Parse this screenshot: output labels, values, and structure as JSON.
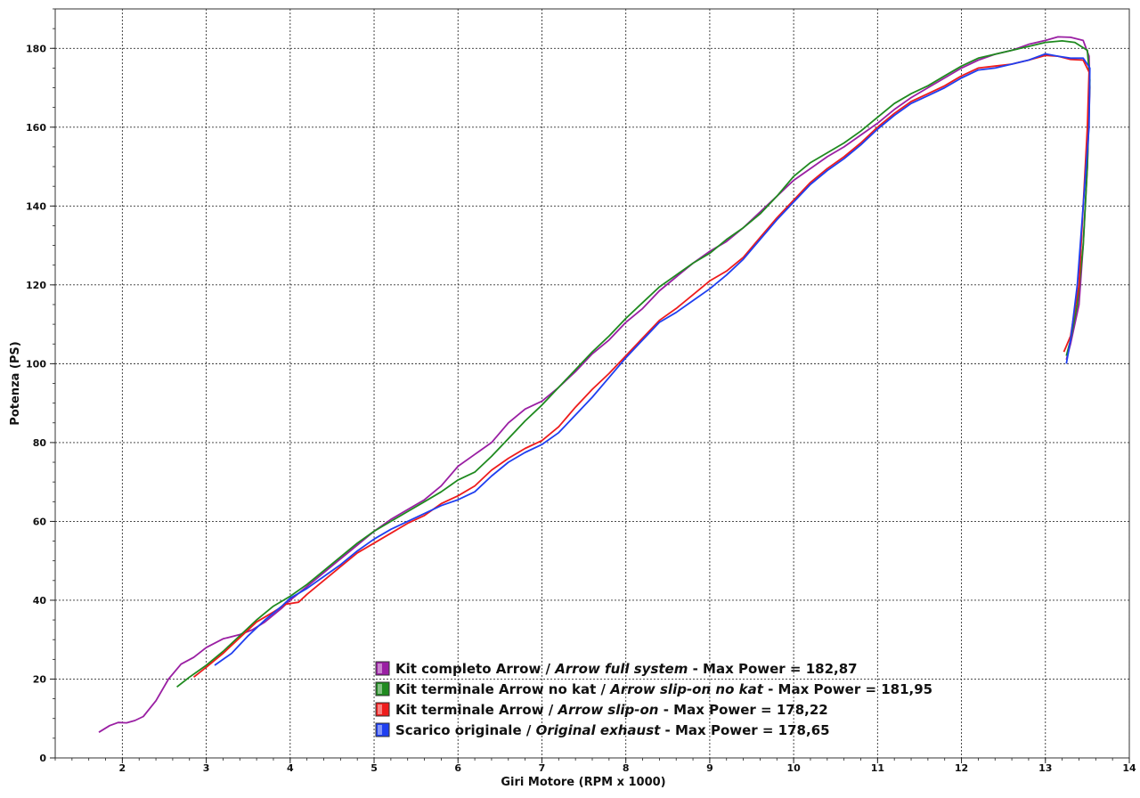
{
  "chart_data": {
    "type": "line",
    "xlabel": "Giri Motore (RPM x 1000)",
    "ylabel": "Potenza (PS)",
    "xlim": [
      1.2,
      14.0
    ],
    "ylim": [
      0,
      190
    ],
    "xticks": [
      2,
      3,
      4,
      5,
      6,
      7,
      8,
      9,
      10,
      11,
      12,
      13,
      14
    ],
    "yticks": [
      0,
      20,
      40,
      60,
      80,
      100,
      120,
      140,
      160,
      180
    ],
    "grid": true,
    "legend_position": "bottom-center",
    "series": [
      {
        "name_a": "Kit completo Arrow",
        "name_b": "Arrow full system",
        "suffix": "Max Power = 182,87",
        "color": "#9a1fa3",
        "points": [
          [
            1.72,
            6.5
          ],
          [
            1.85,
            8.2
          ],
          [
            1.95,
            9.0
          ],
          [
            2.05,
            8.9
          ],
          [
            2.15,
            9.5
          ],
          [
            2.25,
            10.5
          ],
          [
            2.4,
            14.5
          ],
          [
            2.55,
            20.0
          ],
          [
            2.7,
            23.8
          ],
          [
            2.85,
            25.5
          ],
          [
            3.0,
            28.0
          ],
          [
            3.2,
            30.2
          ],
          [
            3.4,
            31.3
          ],
          [
            3.55,
            32.5
          ],
          [
            3.7,
            34.5
          ],
          [
            3.9,
            38.0
          ],
          [
            4.0,
            40.0
          ],
          [
            4.2,
            43.5
          ],
          [
            4.4,
            47.0
          ],
          [
            4.6,
            50.5
          ],
          [
            4.8,
            54.0
          ],
          [
            5.0,
            57.5
          ],
          [
            5.2,
            60.5
          ],
          [
            5.4,
            63.0
          ],
          [
            5.6,
            65.5
          ],
          [
            5.8,
            69.0
          ],
          [
            6.0,
            74.0
          ],
          [
            6.2,
            77.0
          ],
          [
            6.4,
            80.0
          ],
          [
            6.6,
            85.0
          ],
          [
            6.8,
            88.5
          ],
          [
            7.0,
            90.5
          ],
          [
            7.2,
            94.0
          ],
          [
            7.4,
            98.0
          ],
          [
            7.6,
            102.5
          ],
          [
            7.8,
            106.0
          ],
          [
            8.0,
            110.5
          ],
          [
            8.2,
            114.0
          ],
          [
            8.4,
            118.5
          ],
          [
            8.6,
            122.0
          ],
          [
            8.8,
            125.5
          ],
          [
            9.0,
            128.5
          ],
          [
            9.2,
            131.0
          ],
          [
            9.4,
            134.5
          ],
          [
            9.6,
            138.5
          ],
          [
            9.8,
            142.5
          ],
          [
            10.0,
            146.5
          ],
          [
            10.2,
            149.5
          ],
          [
            10.4,
            152.5
          ],
          [
            10.6,
            155.0
          ],
          [
            10.8,
            158.0
          ],
          [
            11.0,
            161.0
          ],
          [
            11.2,
            164.5
          ],
          [
            11.4,
            167.5
          ],
          [
            11.6,
            170.0
          ],
          [
            11.8,
            172.5
          ],
          [
            12.0,
            175.0
          ],
          [
            12.2,
            177.0
          ],
          [
            12.4,
            178.5
          ],
          [
            12.6,
            179.5
          ],
          [
            12.8,
            181.0
          ],
          [
            13.0,
            182.0
          ],
          [
            13.15,
            182.9
          ],
          [
            13.3,
            182.8
          ],
          [
            13.45,
            182.0
          ],
          [
            13.52,
            178.0
          ],
          [
            13.53,
            170.0
          ],
          [
            13.5,
            150.0
          ],
          [
            13.45,
            130.0
          ],
          [
            13.4,
            115.0
          ],
          [
            13.3,
            105.0
          ],
          [
            13.25,
            101.0
          ]
        ]
      },
      {
        "name_a": "Kit terminale Arrow no kat",
        "name_b": "Arrow slip-on no kat",
        "suffix": "Max Power = 181,95",
        "color": "#1f8a1f",
        "points": [
          [
            2.65,
            18.0
          ],
          [
            2.8,
            20.5
          ],
          [
            3.0,
            23.5
          ],
          [
            3.2,
            27.0
          ],
          [
            3.4,
            31.0
          ],
          [
            3.6,
            35.0
          ],
          [
            3.8,
            38.5
          ],
          [
            4.0,
            41.0
          ],
          [
            4.2,
            44.0
          ],
          [
            4.4,
            47.5
          ],
          [
            4.6,
            51.0
          ],
          [
            4.8,
            54.5
          ],
          [
            5.0,
            57.5
          ],
          [
            5.2,
            60.0
          ],
          [
            5.4,
            62.5
          ],
          [
            5.6,
            65.0
          ],
          [
            5.8,
            67.5
          ],
          [
            6.0,
            70.5
          ],
          [
            6.2,
            72.5
          ],
          [
            6.4,
            76.5
          ],
          [
            6.6,
            81.0
          ],
          [
            6.8,
            85.5
          ],
          [
            7.0,
            89.5
          ],
          [
            7.2,
            94.0
          ],
          [
            7.4,
            98.5
          ],
          [
            7.6,
            103.0
          ],
          [
            7.8,
            107.0
          ],
          [
            8.0,
            111.5
          ],
          [
            8.2,
            115.5
          ],
          [
            8.4,
            119.5
          ],
          [
            8.6,
            122.5
          ],
          [
            8.8,
            125.5
          ],
          [
            9.0,
            128.0
          ],
          [
            9.2,
            131.5
          ],
          [
            9.4,
            134.5
          ],
          [
            9.6,
            138.0
          ],
          [
            9.8,
            142.5
          ],
          [
            10.0,
            147.5
          ],
          [
            10.2,
            151.0
          ],
          [
            10.4,
            153.5
          ],
          [
            10.6,
            156.0
          ],
          [
            10.8,
            159.0
          ],
          [
            11.0,
            162.5
          ],
          [
            11.2,
            166.0
          ],
          [
            11.4,
            168.5
          ],
          [
            11.6,
            170.5
          ],
          [
            11.8,
            173.0
          ],
          [
            12.0,
            175.5
          ],
          [
            12.2,
            177.5
          ],
          [
            12.4,
            178.5
          ],
          [
            12.6,
            179.5
          ],
          [
            12.8,
            180.5
          ],
          [
            13.0,
            181.5
          ],
          [
            13.2,
            181.9
          ],
          [
            13.35,
            181.5
          ],
          [
            13.5,
            179.5
          ],
          [
            13.53,
            172.0
          ],
          [
            13.5,
            150.0
          ],
          [
            13.45,
            130.0
          ],
          [
            13.38,
            115.0
          ],
          [
            13.3,
            106.0
          ],
          [
            13.25,
            102.0
          ]
        ]
      },
      {
        "name_a": "Kit terminale Arrow",
        "name_b": "Arrow slip-on",
        "suffix": "Max Power = 178,22",
        "color": "#ee1c1c",
        "points": [
          [
            2.85,
            20.5
          ],
          [
            3.0,
            23.0
          ],
          [
            3.2,
            26.5
          ],
          [
            3.4,
            30.5
          ],
          [
            3.6,
            34.5
          ],
          [
            3.8,
            37.0
          ],
          [
            3.95,
            39.0
          ],
          [
            4.1,
            39.5
          ],
          [
            4.2,
            41.5
          ],
          [
            4.4,
            45.0
          ],
          [
            4.6,
            48.5
          ],
          [
            4.8,
            52.0
          ],
          [
            5.0,
            54.5
          ],
          [
            5.2,
            57.0
          ],
          [
            5.4,
            59.5
          ],
          [
            5.6,
            61.5
          ],
          [
            5.8,
            64.5
          ],
          [
            6.0,
            66.5
          ],
          [
            6.2,
            69.0
          ],
          [
            6.4,
            73.0
          ],
          [
            6.6,
            76.0
          ],
          [
            6.8,
            78.5
          ],
          [
            7.0,
            80.5
          ],
          [
            7.2,
            84.0
          ],
          [
            7.4,
            89.0
          ],
          [
            7.6,
            93.5
          ],
          [
            7.8,
            97.5
          ],
          [
            8.0,
            102.0
          ],
          [
            8.2,
            106.5
          ],
          [
            8.4,
            111.0
          ],
          [
            8.6,
            114.0
          ],
          [
            8.8,
            117.5
          ],
          [
            9.0,
            121.0
          ],
          [
            9.2,
            123.5
          ],
          [
            9.4,
            127.0
          ],
          [
            9.6,
            132.0
          ],
          [
            9.8,
            137.0
          ],
          [
            10.0,
            141.5
          ],
          [
            10.2,
            146.0
          ],
          [
            10.4,
            149.5
          ],
          [
            10.6,
            152.5
          ],
          [
            10.8,
            156.0
          ],
          [
            11.0,
            160.0
          ],
          [
            11.2,
            163.5
          ],
          [
            11.4,
            166.5
          ],
          [
            11.6,
            168.5
          ],
          [
            11.8,
            170.5
          ],
          [
            12.0,
            173.0
          ],
          [
            12.2,
            175.0
          ],
          [
            12.4,
            175.5
          ],
          [
            12.6,
            176.0
          ],
          [
            12.8,
            177.0
          ],
          [
            13.0,
            178.2
          ],
          [
            13.15,
            178.0
          ],
          [
            13.3,
            177.2
          ],
          [
            13.45,
            177.0
          ],
          [
            13.52,
            174.0
          ],
          [
            13.5,
            160.0
          ],
          [
            13.45,
            140.0
          ],
          [
            13.4,
            120.0
          ],
          [
            13.3,
            107.0
          ],
          [
            13.22,
            103.0
          ]
        ]
      },
      {
        "name_a": "Scarico originale",
        "name_b": "Original exhaust",
        "suffix": "Max Power = 178,65",
        "color": "#1f3ff0",
        "points": [
          [
            3.1,
            23.5
          ],
          [
            3.3,
            26.5
          ],
          [
            3.5,
            31.0
          ],
          [
            3.7,
            35.0
          ],
          [
            3.9,
            38.5
          ],
          [
            4.0,
            40.5
          ],
          [
            4.2,
            43.0
          ],
          [
            4.4,
            46.0
          ],
          [
            4.6,
            49.0
          ],
          [
            4.8,
            52.5
          ],
          [
            5.0,
            55.5
          ],
          [
            5.2,
            58.0
          ],
          [
            5.4,
            60.0
          ],
          [
            5.6,
            62.0
          ],
          [
            5.8,
            64.0
          ],
          [
            6.0,
            65.5
          ],
          [
            6.2,
            67.5
          ],
          [
            6.4,
            71.5
          ],
          [
            6.6,
            75.0
          ],
          [
            6.8,
            77.5
          ],
          [
            7.0,
            79.5
          ],
          [
            7.2,
            82.5
          ],
          [
            7.4,
            87.0
          ],
          [
            7.6,
            91.5
          ],
          [
            7.8,
            96.5
          ],
          [
            8.0,
            101.5
          ],
          [
            8.2,
            106.0
          ],
          [
            8.4,
            110.5
          ],
          [
            8.6,
            113.0
          ],
          [
            8.8,
            116.0
          ],
          [
            9.0,
            119.0
          ],
          [
            9.2,
            122.5
          ],
          [
            9.4,
            126.5
          ],
          [
            9.6,
            131.5
          ],
          [
            9.8,
            136.5
          ],
          [
            10.0,
            141.0
          ],
          [
            10.2,
            145.5
          ],
          [
            10.4,
            149.0
          ],
          [
            10.6,
            152.0
          ],
          [
            10.8,
            155.5
          ],
          [
            11.0,
            159.5
          ],
          [
            11.2,
            163.0
          ],
          [
            11.4,
            166.0
          ],
          [
            11.6,
            168.0
          ],
          [
            11.8,
            170.0
          ],
          [
            12.0,
            172.5
          ],
          [
            12.2,
            174.5
          ],
          [
            12.4,
            175.0
          ],
          [
            12.6,
            176.0
          ],
          [
            12.8,
            177.0
          ],
          [
            13.0,
            178.6
          ],
          [
            13.15,
            178.0
          ],
          [
            13.3,
            177.5
          ],
          [
            13.45,
            177.5
          ],
          [
            13.53,
            175.0
          ],
          [
            13.52,
            160.0
          ],
          [
            13.45,
            140.0
          ],
          [
            13.38,
            120.0
          ],
          [
            13.3,
            106.0
          ],
          [
            13.25,
            100.0
          ]
        ]
      }
    ]
  }
}
